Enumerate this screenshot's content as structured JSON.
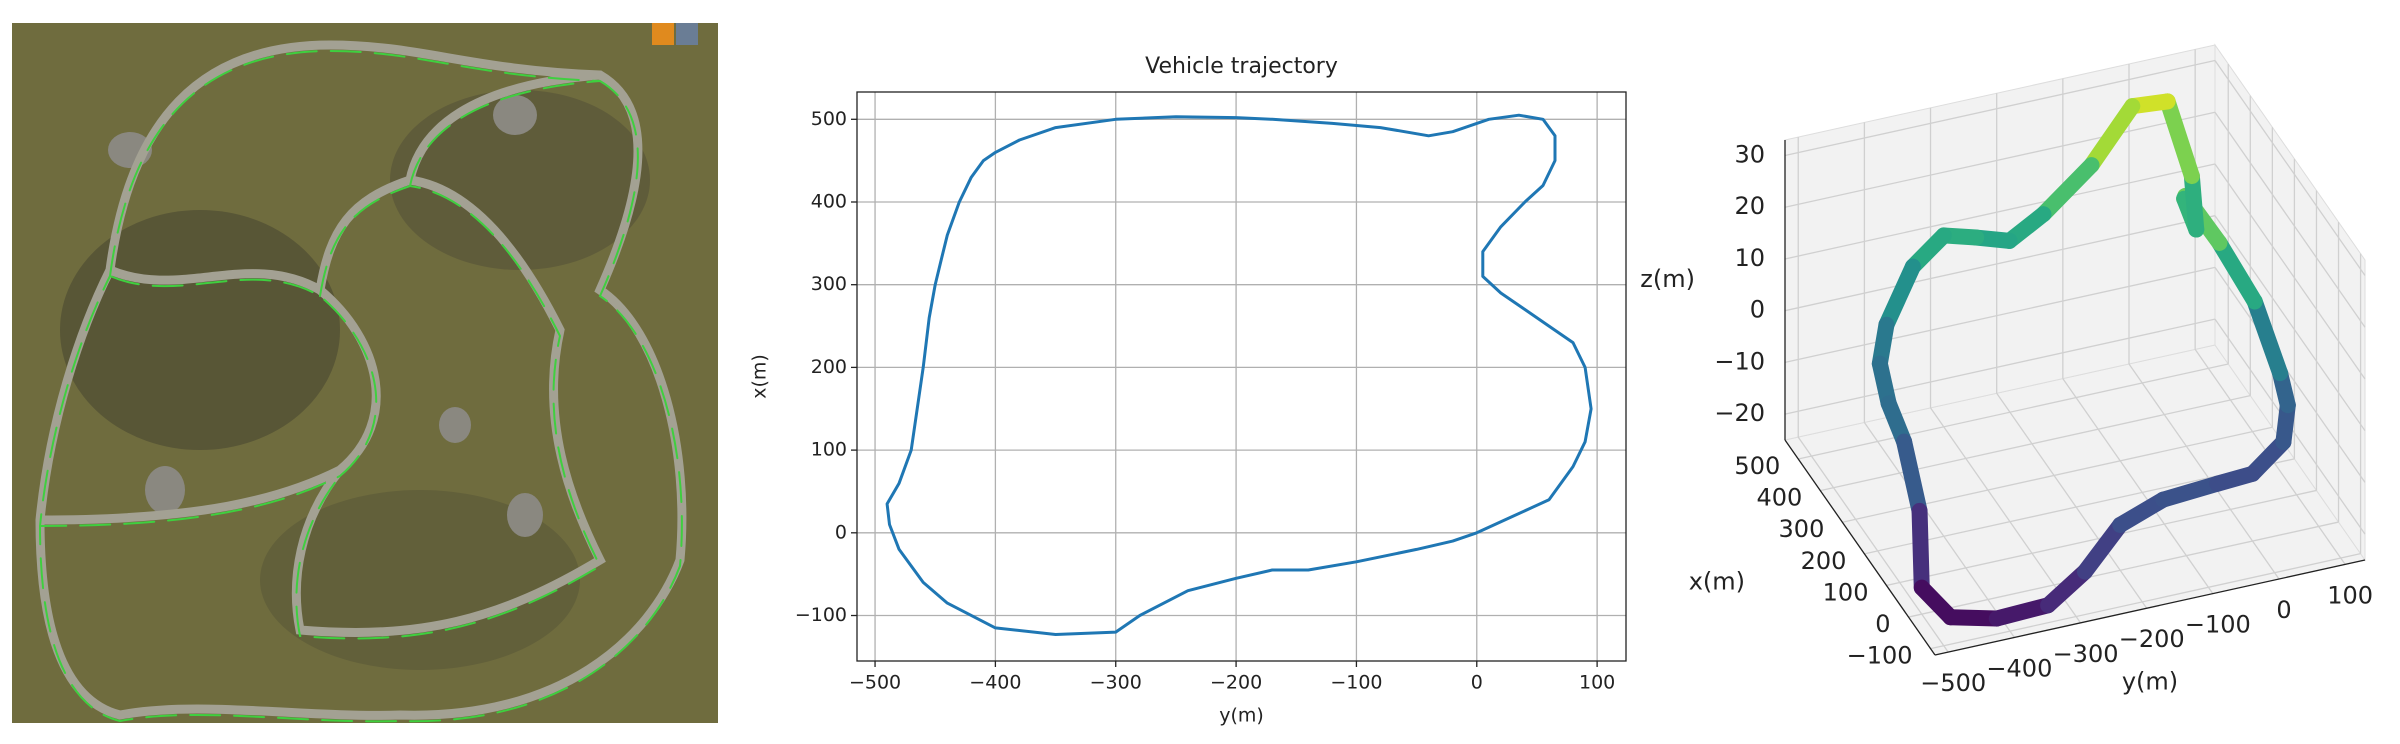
{
  "chart_data": [
    {
      "type": "line",
      "title": "Vehicle trajectory",
      "x_label": "y(m)",
      "y_label": "x(m)",
      "x": [
        0,
        30,
        60,
        80,
        90,
        95,
        90,
        80,
        60,
        40,
        20,
        5,
        5,
        20,
        40,
        55,
        65,
        65,
        55,
        35,
        10,
        -20,
        -40,
        -80,
        -120,
        -170,
        -200,
        -250,
        -300,
        -350,
        -380,
        -400,
        -410,
        -420,
        -430,
        -440,
        -445,
        -450,
        -455,
        -460,
        -465,
        -470,
        -480,
        -490,
        -488,
        -480,
        -460,
        -440,
        -400,
        -350,
        -300,
        -280,
        -240,
        -200,
        -170,
        -140,
        -100,
        -50,
        -20,
        0
      ],
      "series": [
        {
          "color": "#1f77b4",
          "values": [
            0,
            20,
            40,
            80,
            110,
            150,
            200,
            230,
            250,
            270,
            290,
            310,
            340,
            370,
            400,
            420,
            450,
            480,
            500,
            505,
            500,
            485,
            480,
            490,
            495,
            500,
            502,
            503,
            500,
            490,
            475,
            460,
            450,
            430,
            400,
            360,
            330,
            300,
            260,
            200,
            150,
            100,
            60,
            35,
            10,
            -20,
            -60,
            -85,
            -115,
            -123,
            -120,
            -100,
            -70,
            -55,
            -45,
            -45,
            -35,
            -20,
            -10,
            0
          ]
        }
      ],
      "xlim": [
        -515,
        124
      ],
      "ylim": [
        -155,
        533
      ],
      "xticks": [
        {
          "value": -500,
          "label": "−500"
        },
        {
          "value": -400,
          "label": "−400"
        },
        {
          "value": -300,
          "label": "−300"
        },
        {
          "value": -200,
          "label": "−200"
        },
        {
          "value": -100,
          "label": "−100"
        },
        0,
        100
      ],
      "yticks": [
        {
          "value": -100,
          "label": "−100"
        },
        0,
        100,
        200,
        300,
        400,
        500
      ],
      "grid": true
    },
    {
      "type": "line3d",
      "xlabel": "y(m)",
      "ylabel": "x(m)",
      "zlabel": "z(m)",
      "colormap": "viridis",
      "x": [
        0,
        60,
        90,
        95,
        80,
        40,
        5,
        20,
        55,
        65,
        40,
        -20,
        -80,
        -150,
        -200,
        -250,
        -300,
        -350,
        -400,
        -430,
        -450,
        -460,
        -470,
        -490,
        -470,
        -420,
        -350,
        -290,
        -220,
        -150,
        -60,
        0
      ],
      "y": [
        0,
        40,
        110,
        160,
        230,
        270,
        320,
        370,
        420,
        470,
        505,
        485,
        490,
        498,
        502,
        503,
        500,
        490,
        460,
        400,
        300,
        200,
        100,
        30,
        -40,
        -100,
        -123,
        -110,
        -60,
        -45,
        -20,
        0
      ],
      "z": [
        -12,
        -10,
        -8,
        -5,
        5,
        15,
        22,
        18,
        8,
        15,
        28,
        30,
        20,
        12,
        8,
        10,
        12,
        8,
        0,
        -3,
        -4,
        -5,
        -12,
        -22,
        -24,
        -22,
        -20,
        -16,
        -12,
        -10,
        -11,
        -12
      ],
      "xlim": [
        -520,
        130
      ],
      "ylim": [
        -120,
        560
      ],
      "zlim": [
        -25,
        33
      ],
      "xticks": [
        {
          "value": -500,
          "label": "−500"
        },
        {
          "value": -400,
          "label": "−400"
        },
        {
          "value": -300,
          "label": "−300"
        },
        {
          "value": -200,
          "label": "−200"
        },
        {
          "value": -100,
          "label": "−100"
        },
        0,
        100
      ],
      "yticks": [
        {
          "value": -100,
          "label": "−100"
        },
        0,
        100,
        200,
        300,
        400,
        500
      ],
      "zticks": [
        {
          "value": -20,
          "label": "−20"
        },
        {
          "value": -10,
          "label": "−10"
        },
        0,
        10,
        20,
        30
      ]
    }
  ]
}
